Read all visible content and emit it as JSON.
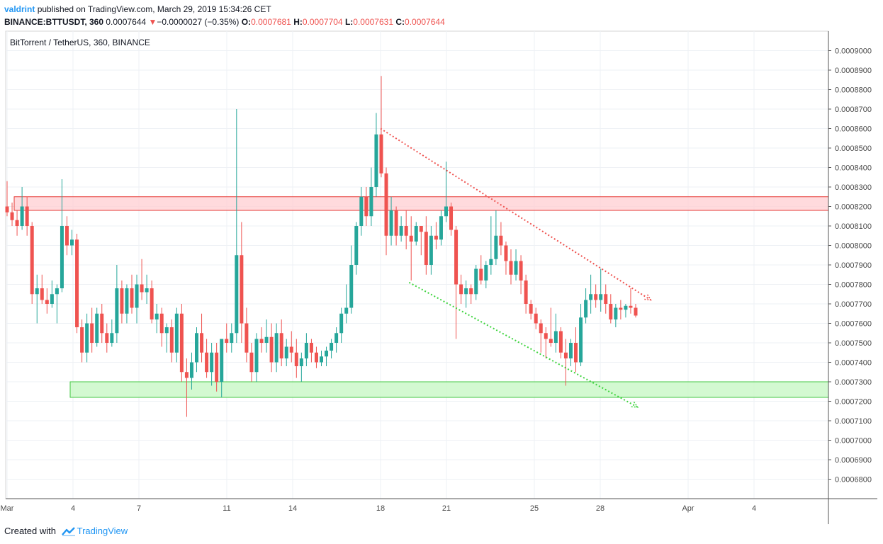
{
  "header": {
    "author": "valdrint",
    "published_text": "published on TradingView.com, March 29, 2019 15:34:26 CET",
    "symbol": "BINANCE:BTTUSDT, 360",
    "last_price": "0.0007644",
    "change_arrow": "▼",
    "change": "−0.0000027 (−0.35%)",
    "o_label": "O:",
    "o_value": "0.0007681",
    "h_label": "H:",
    "h_value": "0.0007704",
    "l_label": "L:",
    "l_value": "0.0007631",
    "c_label": "C:",
    "c_value": "0.0007644"
  },
  "footer": {
    "created_with": "Created with",
    "brand": "TradingView"
  },
  "colors": {
    "up": "#26a69a",
    "down": "#ef5350",
    "resistance_fill": "#ffcdd2",
    "resistance_border": "#e53935",
    "support_fill": "#c8f7c5",
    "support_border": "#43c743",
    "grid": "#eef1f5",
    "axis_text": "#4a4a4a"
  },
  "chart_data": {
    "type": "candlestick",
    "title": "BitTorrent / TetherUS, 360, BINANCE",
    "ylim": [
      0.00067,
      0.00091
    ],
    "y_ticks": [
      "0.0006800",
      "0.0006900",
      "0.0007000",
      "0.0007100",
      "0.0007200",
      "0.0007300",
      "0.0007400",
      "0.0007500",
      "0.0007600",
      "0.0007700",
      "0.0007800",
      "0.0007900",
      "0.0008000",
      "0.0008100",
      "0.0008200",
      "0.0008300",
      "0.0008400",
      "0.0008500",
      "0.0008600",
      "0.0008700",
      "0.0008800",
      "0.0008900",
      "0.0009000"
    ],
    "x_ticks": [
      {
        "label": "Mar",
        "day": 1
      },
      {
        "label": "4",
        "day": 4
      },
      {
        "label": "7",
        "day": 7
      },
      {
        "label": "11",
        "day": 11
      },
      {
        "label": "14",
        "day": 14
      },
      {
        "label": "18",
        "day": 18
      },
      {
        "label": "21",
        "day": 21
      },
      {
        "label": "25",
        "day": 25
      },
      {
        "label": "28",
        "day": 28
      },
      {
        "label": "Apr",
        "day": 32
      },
      {
        "label": "4",
        "day": 35
      }
    ],
    "resistance_zone": [
      0.000818,
      0.000825
    ],
    "support_zone": [
      0.000722,
      0.00073
    ],
    "trendlines": [
      {
        "kind": "descending-resistance",
        "from": {
          "day": 18.0,
          "price": 0.00086
        },
        "to": {
          "day": 30.3,
          "price": 0.000772
        }
      },
      {
        "kind": "descending-support",
        "from": {
          "day": 19.3,
          "price": 0.000781
        },
        "to": {
          "day": 29.7,
          "price": 0.000717
        }
      }
    ],
    "candles_ohlc": [
      [
        0.00082,
        0.000833,
        0.000815,
        0.000817
      ],
      [
        0.000817,
        0.000822,
        0.00081,
        0.000813
      ],
      [
        0.000813,
        0.000818,
        0.000805,
        0.00081
      ],
      [
        0.00081,
        0.00083,
        0.000808,
        0.00082
      ],
      [
        0.00082,
        0.000825,
        0.000805,
        0.00081
      ],
      [
        0.00081,
        0.000812,
        0.00077,
        0.000775
      ],
      [
        0.000775,
        0.000785,
        0.00076,
        0.000778
      ],
      [
        0.000778,
        0.000785,
        0.00077,
        0.000772
      ],
      [
        0.000772,
        0.000778,
        0.000765,
        0.00077
      ],
      [
        0.00077,
        0.000782,
        0.000768,
        0.000775
      ],
      [
        0.000775,
        0.00078,
        0.00076,
        0.000778
      ],
      [
        0.000778,
        0.000834,
        0.000776,
        0.00081
      ],
      [
        0.00081,
        0.000815,
        0.000795,
        0.0008
      ],
      [
        0.0008,
        0.000808,
        0.000795,
        0.000803
      ],
      [
        0.000803,
        0.000806,
        0.000755,
        0.000758
      ],
      [
        0.000758,
        0.000762,
        0.00074,
        0.000745
      ],
      [
        0.000745,
        0.000765,
        0.00074,
        0.00076
      ],
      [
        0.00076,
        0.000768,
        0.000745,
        0.00075
      ],
      [
        0.00075,
        0.000768,
        0.000748,
        0.000765
      ],
      [
        0.000765,
        0.00077,
        0.00075,
        0.000755
      ],
      [
        0.000755,
        0.00076,
        0.000745,
        0.00075
      ],
      [
        0.00075,
        0.000762,
        0.000748,
        0.000755
      ],
      [
        0.000755,
        0.00079,
        0.00075,
        0.000778
      ],
      [
        0.000778,
        0.000782,
        0.00076,
        0.000765
      ],
      [
        0.000765,
        0.00078,
        0.00076,
        0.000778
      ],
      [
        0.000778,
        0.000785,
        0.000765,
        0.000768
      ],
      [
        0.000768,
        0.000785,
        0.00076,
        0.00078
      ],
      [
        0.00078,
        0.000793,
        0.000772,
        0.000776
      ],
      [
        0.000776,
        0.000785,
        0.00077,
        0.000778
      ],
      [
        0.000778,
        0.000782,
        0.00076,
        0.000762
      ],
      [
        0.000762,
        0.00077,
        0.000755,
        0.000765
      ],
      [
        0.000765,
        0.000768,
        0.000748,
        0.000755
      ],
      [
        0.000755,
        0.00076,
        0.000745,
        0.000758
      ],
      [
        0.000758,
        0.000762,
        0.00074,
        0.000745
      ],
      [
        0.000745,
        0.000768,
        0.00074,
        0.000765
      ],
      [
        0.000765,
        0.00077,
        0.00073,
        0.000735
      ],
      [
        0.000735,
        0.000742,
        0.000712,
        0.000732
      ],
      [
        0.000732,
        0.000745,
        0.000726,
        0.00074
      ],
      [
        0.00074,
        0.000758,
        0.000735,
        0.000755
      ],
      [
        0.000755,
        0.000765,
        0.00074,
        0.000745
      ],
      [
        0.000745,
        0.000752,
        0.000732,
        0.000735
      ],
      [
        0.000735,
        0.00075,
        0.000728,
        0.000745
      ],
      [
        0.000745,
        0.00075,
        0.000725,
        0.00073
      ],
      [
        0.00073,
        0.00075,
        0.000722,
        0.000752
      ],
      [
        0.000752,
        0.00076,
        0.000745,
        0.00075
      ],
      [
        0.00075,
        0.00076,
        0.000745,
        0.000755
      ],
      [
        0.000755,
        0.00087,
        0.00075,
        0.000795
      ],
      [
        0.000795,
        0.000812,
        0.00075,
        0.00076
      ],
      [
        0.00076,
        0.000768,
        0.00074,
        0.000745
      ],
      [
        0.000745,
        0.00075,
        0.00073,
        0.000735
      ],
      [
        0.000735,
        0.000755,
        0.00073,
        0.000752
      ],
      [
        0.000752,
        0.000758,
        0.000745,
        0.00075
      ],
      [
        0.00075,
        0.000762,
        0.000745,
        0.000753
      ],
      [
        0.000753,
        0.00076,
        0.000735,
        0.00074
      ],
      [
        0.00074,
        0.00076,
        0.000735,
        0.000755
      ],
      [
        0.000755,
        0.000762,
        0.000738,
        0.000742
      ],
      [
        0.000742,
        0.000752,
        0.000738,
        0.000748
      ],
      [
        0.000748,
        0.000756,
        0.00074,
        0.000745
      ],
      [
        0.000745,
        0.000752,
        0.000732,
        0.000738
      ],
      [
        0.000738,
        0.000745,
        0.00073,
        0.000742
      ],
      [
        0.000742,
        0.000755,
        0.000738,
        0.00075
      ],
      [
        0.00075,
        0.000752,
        0.00074,
        0.000745
      ],
      [
        0.000745,
        0.000748,
        0.000737,
        0.00074
      ],
      [
        0.00074,
        0.000746,
        0.000738,
        0.000743
      ],
      [
        0.000743,
        0.000748,
        0.000738,
        0.000746
      ],
      [
        0.000746,
        0.000752,
        0.000742,
        0.00075
      ],
      [
        0.00075,
        0.000758,
        0.000745,
        0.000755
      ],
      [
        0.000755,
        0.000768,
        0.00075,
        0.000765
      ],
      [
        0.000765,
        0.00078,
        0.00076,
        0.000768
      ],
      [
        0.000768,
        0.0008,
        0.000765,
        0.00079
      ],
      [
        0.00079,
        0.000812,
        0.000785,
        0.00081
      ],
      [
        0.00081,
        0.00083,
        0.000805,
        0.000825
      ],
      [
        0.000825,
        0.00083,
        0.00081,
        0.000815
      ],
      [
        0.000815,
        0.00084,
        0.00081,
        0.00083
      ],
      [
        0.00083,
        0.000868,
        0.000825,
        0.000857
      ],
      [
        0.000857,
        0.000887,
        0.000835,
        0.000837
      ],
      [
        0.000837,
        0.00084,
        0.000795,
        0.000805
      ],
      [
        0.000805,
        0.000825,
        0.0008,
        0.000818
      ],
      [
        0.000818,
        0.00082,
        0.0008,
        0.000805
      ],
      [
        0.000805,
        0.000815,
        0.000802,
        0.00081
      ],
      [
        0.00081,
        0.000818,
        0.000798,
        0.000805
      ],
      [
        0.000805,
        0.000815,
        0.000782,
        0.000802
      ],
      [
        0.000802,
        0.000812,
        0.0008,
        0.00081
      ],
      [
        0.00081,
        0.00081,
        0.000795,
        0.000807
      ],
      [
        0.000807,
        0.000815,
        0.000785,
        0.00079
      ],
      [
        0.00079,
        0.00081,
        0.000785,
        0.000805
      ],
      [
        0.000805,
        0.000812,
        0.000798,
        0.000803
      ],
      [
        0.000803,
        0.000818,
        0.0008,
        0.000815
      ],
      [
        0.000815,
        0.000843,
        0.000812,
        0.00082
      ],
      [
        0.00082,
        0.000822,
        0.000805,
        0.000808
      ],
      [
        0.000808,
        0.00081,
        0.000752,
        0.00078
      ],
      [
        0.00078,
        0.000785,
        0.00077,
        0.000775
      ],
      [
        0.000775,
        0.000782,
        0.000768,
        0.000778
      ],
      [
        0.000778,
        0.00078,
        0.00077,
        0.000775
      ],
      [
        0.000775,
        0.00079,
        0.000772,
        0.000788
      ],
      [
        0.000788,
        0.000795,
        0.00078,
        0.000782
      ],
      [
        0.000782,
        0.000792,
        0.000778,
        0.00079
      ],
      [
        0.00079,
        0.000815,
        0.000785,
        0.000793
      ],
      [
        0.000793,
        0.000818,
        0.00079,
        0.000805
      ],
      [
        0.000805,
        0.000812,
        0.000795,
        0.0008
      ],
      [
        0.0008,
        0.000802,
        0.000785,
        0.000792
      ],
      [
        0.000792,
        0.000798,
        0.00078,
        0.000785
      ],
      [
        0.000785,
        0.000798,
        0.000782,
        0.000792
      ],
      [
        0.000792,
        0.000795,
        0.000775,
        0.000782
      ],
      [
        0.000782,
        0.000785,
        0.000765,
        0.00077
      ],
      [
        0.00077,
        0.000772,
        0.000762,
        0.000765
      ],
      [
        0.000765,
        0.000768,
        0.000757,
        0.00076
      ],
      [
        0.00076,
        0.000762,
        0.000745,
        0.000755
      ],
      [
        0.000755,
        0.000758,
        0.000742,
        0.000752
      ],
      [
        0.000752,
        0.000768,
        0.000748,
        0.00075
      ],
      [
        0.00075,
        0.000765,
        0.000745,
        0.000756
      ],
      [
        0.000756,
        0.000758,
        0.000742,
        0.000745
      ],
      [
        0.000745,
        0.000752,
        0.000728,
        0.000742
      ],
      [
        0.000742,
        0.000752,
        0.000738,
        0.00075
      ],
      [
        0.00075,
        0.000758,
        0.000735,
        0.00074
      ],
      [
        0.00074,
        0.00077,
        0.000738,
        0.000763
      ],
      [
        0.000763,
        0.000778,
        0.00076,
        0.000772
      ],
      [
        0.000772,
        0.000785,
        0.000765,
        0.000775
      ],
      [
        0.000775,
        0.00078,
        0.000768,
        0.000772
      ],
      [
        0.000772,
        0.000788,
        0.000766,
        0.000775
      ],
      [
        0.000775,
        0.00078,
        0.000765,
        0.00077
      ],
      [
        0.00077,
        0.000775,
        0.00076,
        0.000762
      ],
      [
        0.000762,
        0.00077,
        0.000758,
        0.000768
      ],
      [
        0.000768,
        0.000772,
        0.000762,
        0.000767
      ],
      [
        0.000767,
        0.00077,
        0.000763,
        0.000769
      ],
      [
        0.000769,
        0.000778,
        0.000765,
        0.000768
      ],
      [
        0.000768,
        0.00077,
        0.000763,
        0.000764
      ]
    ]
  }
}
